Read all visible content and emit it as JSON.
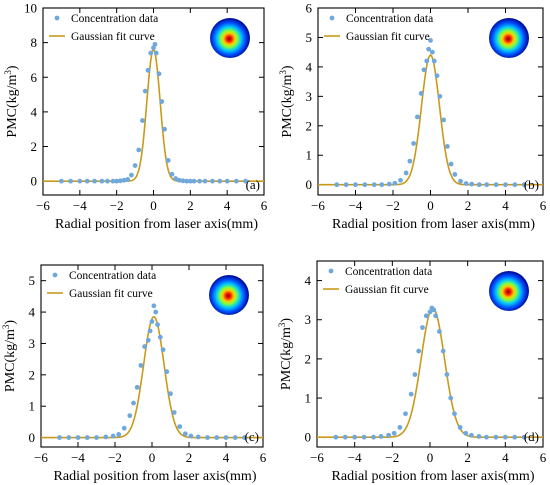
{
  "colors": {
    "data_points": "#6fa8dc",
    "fit_curve": "#c99a1a",
    "axes": "#000000"
  },
  "chart_data": [
    {
      "type": "scatter",
      "panel_label": "(a)",
      "xlabel": "Radial position from laser axis(mm)",
      "ylabel": "PMC(kg/m3)",
      "xlim": [
        -6,
        6
      ],
      "ylim": [
        -0.8,
        10
      ],
      "xticks": [
        -6,
        -4,
        -2,
        0,
        2,
        4,
        6
      ],
      "yticks": [
        0,
        2,
        4,
        6,
        8,
        10
      ],
      "inset_icon": "beam-cross-section-heatmap",
      "legend": {
        "position": "top-left",
        "entries": [
          "Concentration data",
          "Gaussian fit curve"
        ]
      },
      "fit": {
        "amplitude": 7.6,
        "center": 0.0,
        "sigma": 0.36
      },
      "series": [
        {
          "name": "Concentration data",
          "style": "markers",
          "x": [
            -5.0,
            -4.5,
            -4.0,
            -3.6,
            -3.2,
            -2.8,
            -2.5,
            -2.2,
            -2.0,
            -1.8,
            -1.6,
            -1.4,
            -1.2,
            -1.0,
            -0.8,
            -0.6,
            -0.45,
            -0.3,
            -0.15,
            0.0,
            0.08,
            0.15,
            0.3,
            0.45,
            0.6,
            0.8,
            1.0,
            1.2,
            1.4,
            1.6,
            1.8,
            2.0,
            2.2,
            2.5,
            2.8,
            3.2,
            3.6,
            4.0,
            4.5,
            5.0
          ],
          "y": [
            0,
            0,
            0,
            0,
            0,
            0,
            0,
            0,
            0,
            0.02,
            0.05,
            0.1,
            0.35,
            0.9,
            1.8,
            3.5,
            5.2,
            6.4,
            7.4,
            7.7,
            7.9,
            7.4,
            6.2,
            4.6,
            3.0,
            1.2,
            0.4,
            0.15,
            0.05,
            0.02,
            0,
            0,
            0,
            0,
            0,
            0,
            0,
            0,
            0,
            0
          ]
        },
        {
          "name": "Gaussian fit curve",
          "style": "line",
          "from_fit": true
        }
      ]
    },
    {
      "type": "scatter",
      "panel_label": "(b)",
      "xlabel": "Radial position from laser axis(mm)",
      "ylabel": "PMC(kg/m3)",
      "xlim": [
        -6,
        6
      ],
      "ylim": [
        -0.35,
        6
      ],
      "xticks": [
        -6,
        -4,
        -2,
        0,
        2,
        4,
        6
      ],
      "yticks": [
        0,
        1,
        2,
        3,
        4,
        5,
        6
      ],
      "inset_icon": "beam-cross-section-heatmap",
      "legend": {
        "position": "top-left",
        "entries": [
          "Concentration data",
          "Gaussian fit curve"
        ]
      },
      "fit": {
        "amplitude": 4.4,
        "center": 0.0,
        "sigma": 0.48
      },
      "series": [
        {
          "name": "Concentration data",
          "style": "markers",
          "x": [
            -5.0,
            -4.5,
            -4.0,
            -3.5,
            -3.0,
            -2.6,
            -2.2,
            -1.9,
            -1.6,
            -1.3,
            -1.1,
            -0.9,
            -0.7,
            -0.5,
            -0.35,
            -0.2,
            -0.1,
            0.0,
            0.1,
            0.2,
            0.35,
            0.5,
            0.7,
            0.9,
            1.1,
            1.3,
            1.6,
            1.9,
            2.2,
            2.6,
            3.0,
            3.5,
            4.0,
            4.5,
            5.0
          ],
          "y": [
            0,
            0,
            0,
            0,
            0,
            0,
            0.02,
            0.05,
            0.15,
            0.4,
            0.8,
            1.4,
            2.3,
            3.1,
            3.9,
            4.2,
            4.6,
            4.9,
            4.5,
            4.2,
            3.7,
            3.0,
            2.2,
            1.3,
            0.7,
            0.35,
            0.12,
            0.04,
            0.02,
            0,
            0,
            0,
            0,
            0,
            0
          ]
        },
        {
          "name": "Gaussian fit curve",
          "style": "line",
          "from_fit": true
        }
      ]
    },
    {
      "type": "scatter",
      "panel_label": "(c)",
      "xlabel": "Radial position from laser axis(mm)",
      "ylabel": "PMC(kg/m3)",
      "xlim": [
        -6,
        6
      ],
      "ylim": [
        -0.3,
        5.5
      ],
      "xticks": [
        -6,
        -4,
        -2,
        0,
        2,
        4,
        6
      ],
      "yticks": [
        0,
        1,
        2,
        3,
        4,
        5
      ],
      "inset_icon": "beam-cross-section-heatmap",
      "legend": {
        "position": "top-left",
        "entries": [
          "Concentration data",
          "Gaussian fit curve"
        ]
      },
      "fit": {
        "amplitude": 3.85,
        "center": 0.1,
        "sigma": 0.55
      },
      "series": [
        {
          "name": "Concentration data",
          "style": "markers",
          "x": [
            -5.0,
            -4.5,
            -4.0,
            -3.5,
            -3.0,
            -2.5,
            -2.1,
            -1.8,
            -1.5,
            -1.2,
            -1.0,
            -0.8,
            -0.6,
            -0.4,
            -0.2,
            -0.1,
            0.0,
            0.1,
            0.2,
            0.3,
            0.45,
            0.6,
            0.8,
            1.0,
            1.2,
            1.5,
            1.8,
            2.1,
            2.5,
            3.0,
            3.5,
            4.0,
            4.5,
            5.0
          ],
          "y": [
            0,
            0,
            0,
            0,
            0,
            0.02,
            0.05,
            0.1,
            0.3,
            0.7,
            1.1,
            1.6,
            2.3,
            2.9,
            3.1,
            3.4,
            3.7,
            4.2,
            4.0,
            3.6,
            3.2,
            2.8,
            2.1,
            1.4,
            0.8,
            0.35,
            0.12,
            0.05,
            0.02,
            0,
            0,
            0,
            0,
            0
          ]
        },
        {
          "name": "Gaussian fit curve",
          "style": "line",
          "from_fit": true
        }
      ]
    },
    {
      "type": "scatter",
      "panel_label": "(d)",
      "xlabel": "Radial position from laser axis(mm)",
      "ylabel": "PMC(kg/m3)",
      "xlim": [
        -6,
        6
      ],
      "ylim": [
        -0.25,
        4.5
      ],
      "xticks": [
        -6,
        -4,
        -2,
        0,
        2,
        4,
        6
      ],
      "yticks": [
        0,
        1,
        2,
        3,
        4
      ],
      "inset_icon": "beam-cross-section-heatmap",
      "legend": {
        "position": "top-left",
        "entries": [
          "Concentration data",
          "Gaussian fit curve"
        ]
      },
      "fit": {
        "amplitude": 3.3,
        "center": 0.15,
        "sigma": 0.62
      },
      "series": [
        {
          "name": "Concentration data",
          "style": "markers",
          "x": [
            -5.0,
            -4.5,
            -4.0,
            -3.5,
            -3.0,
            -2.6,
            -2.2,
            -1.9,
            -1.6,
            -1.3,
            -1.0,
            -0.8,
            -0.6,
            -0.4,
            -0.2,
            0.0,
            0.1,
            0.2,
            0.3,
            0.5,
            0.7,
            0.9,
            1.1,
            1.3,
            1.6,
            1.9,
            2.2,
            2.6,
            3.0,
            3.5,
            4.0,
            4.5,
            5.0
          ],
          "y": [
            0,
            0,
            0,
            0,
            0,
            0.02,
            0.05,
            0.1,
            0.25,
            0.6,
            1.1,
            1.6,
            2.2,
            2.8,
            3.1,
            3.2,
            3.3,
            3.25,
            3.1,
            2.7,
            2.2,
            1.6,
            1.0,
            0.6,
            0.25,
            0.1,
            0.05,
            0.02,
            0,
            0,
            0,
            0,
            0
          ]
        },
        {
          "name": "Gaussian fit curve",
          "style": "line",
          "from_fit": true
        }
      ]
    }
  ]
}
